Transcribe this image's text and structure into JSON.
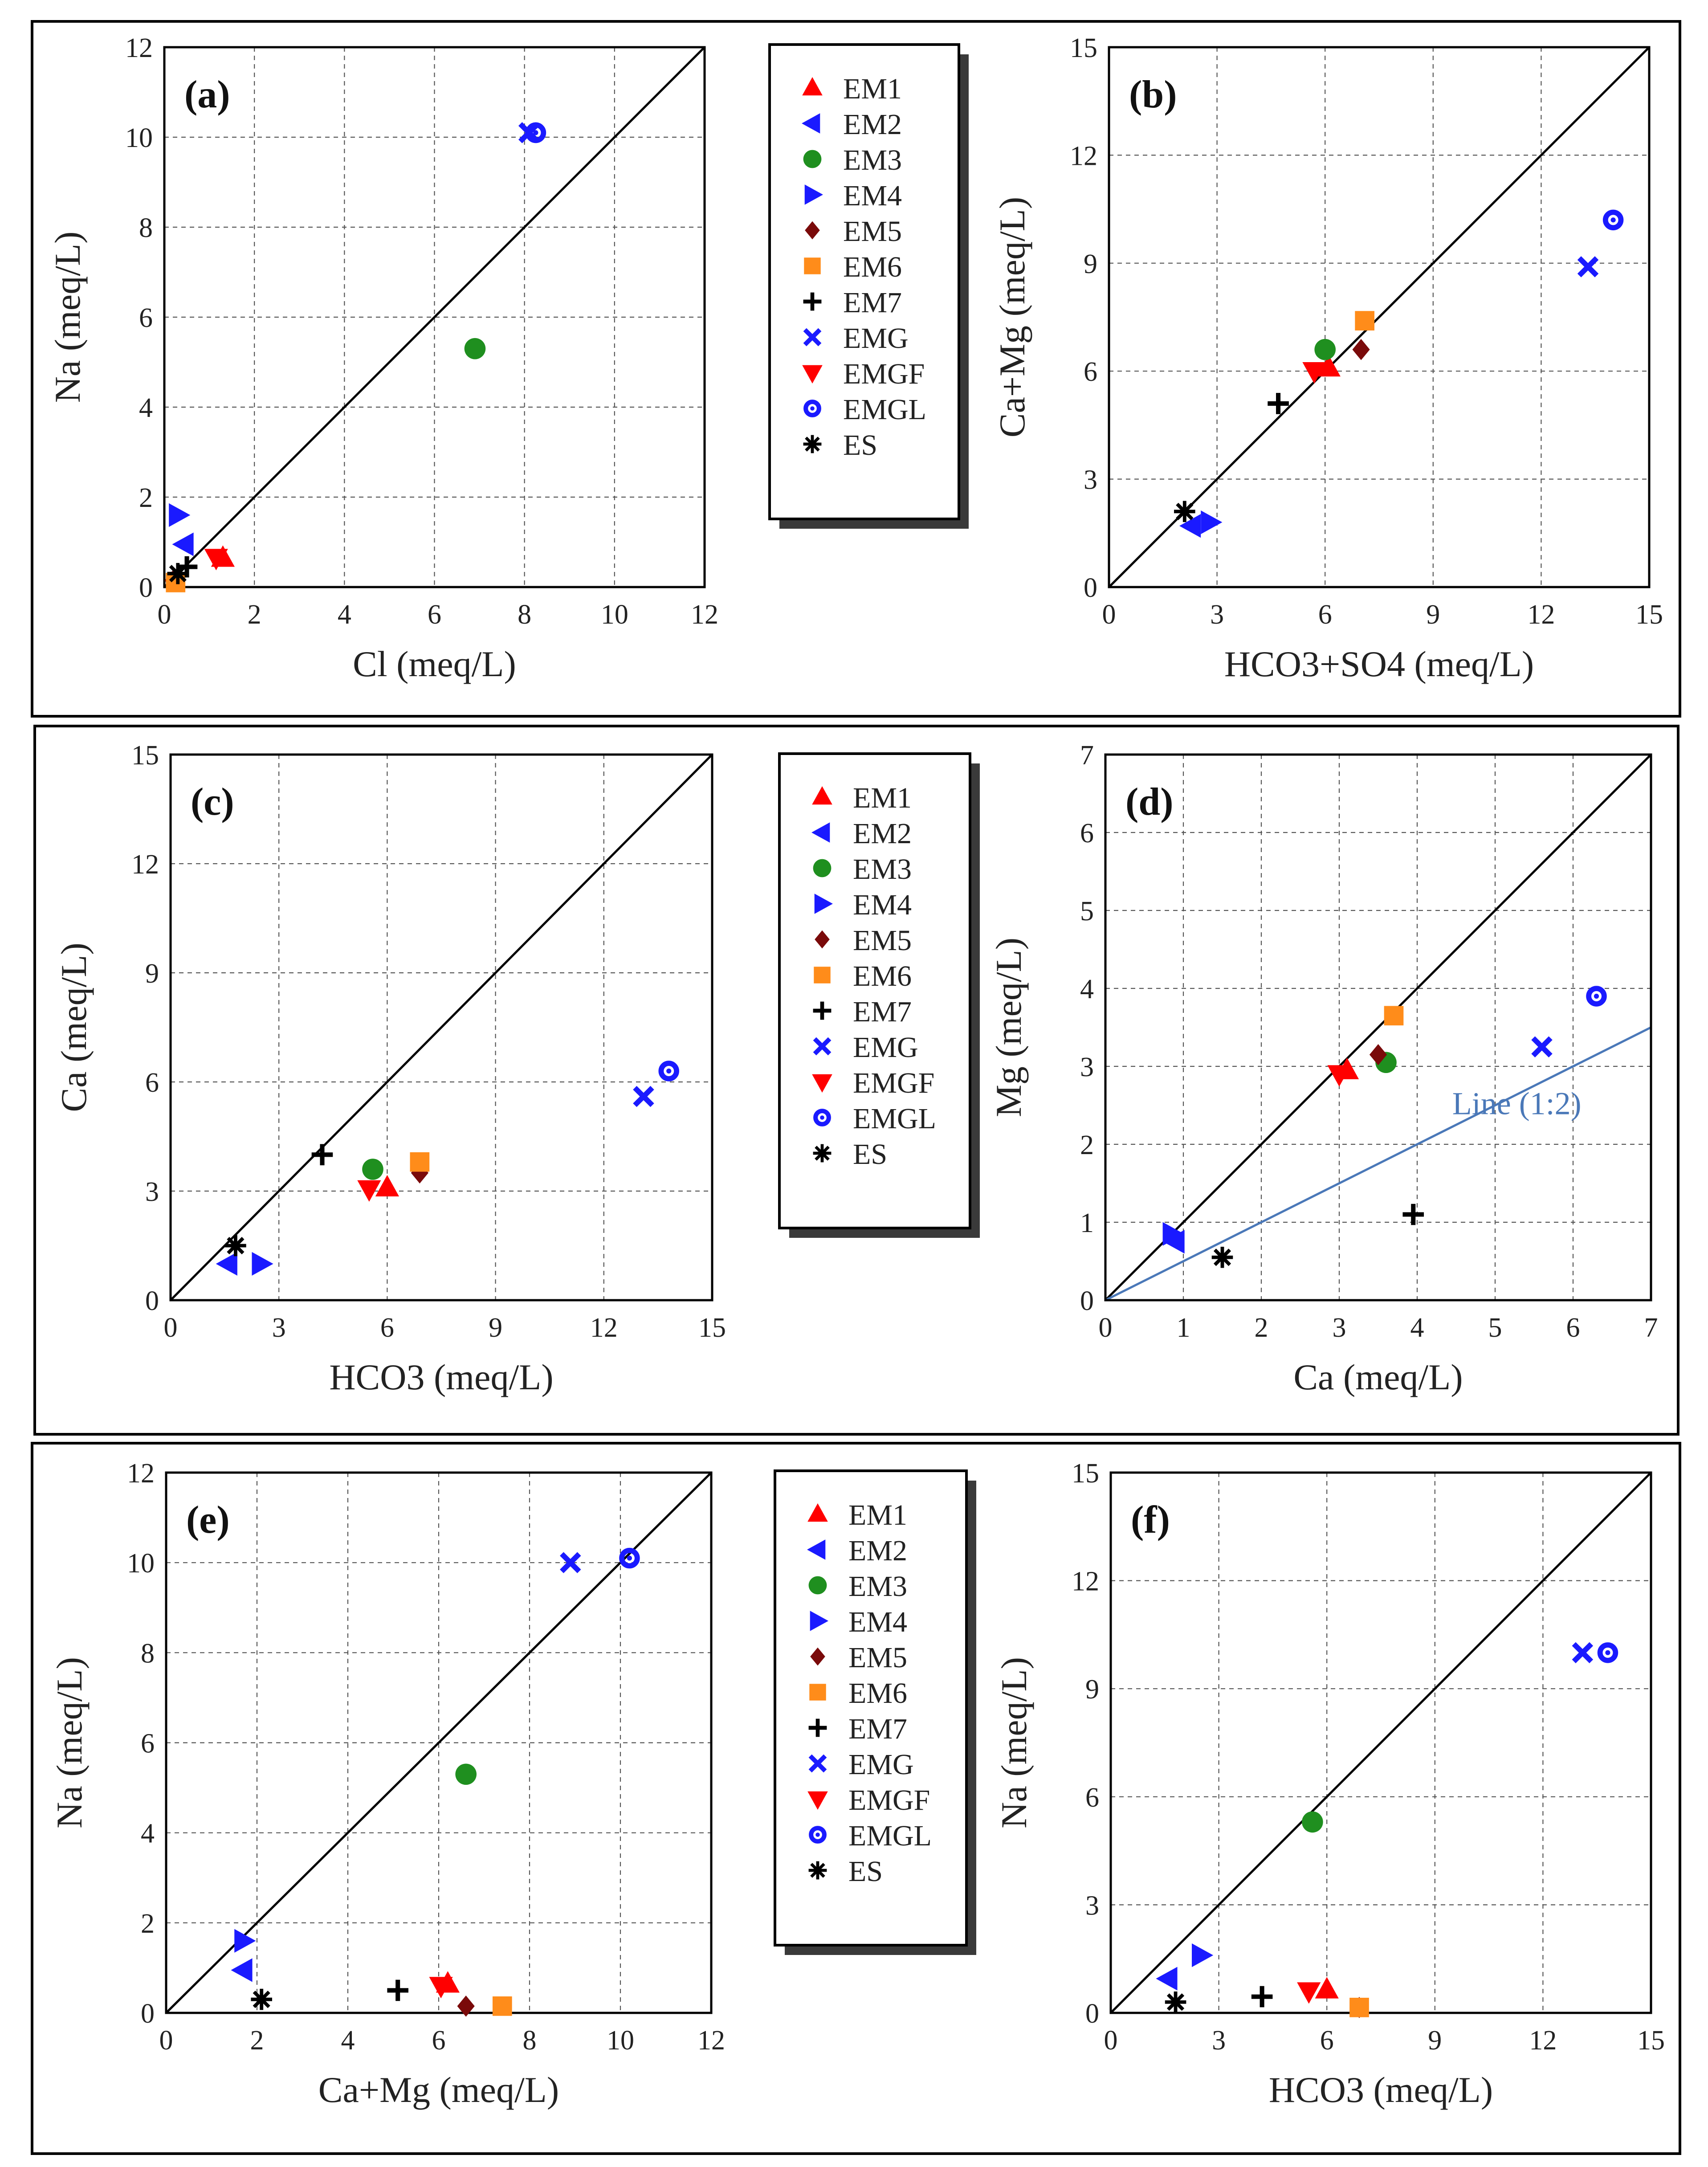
{
  "figure": {
    "legend_series": [
      "EM1",
      "EM2",
      "EM3",
      "EM4",
      "EM5",
      "EM6",
      "EM7",
      "EMG",
      "EMGF",
      "EMGL",
      "ES"
    ],
    "series_styles": {
      "EM1": {
        "marker": "triangle-up",
        "color": "#ff0000"
      },
      "EM2": {
        "marker": "triangle-left",
        "color": "#1a1aff"
      },
      "EM3": {
        "marker": "circle",
        "color": "#1f8f1f"
      },
      "EM4": {
        "marker": "triangle-right",
        "color": "#1a1aff"
      },
      "EM5": {
        "marker": "diamond",
        "color": "#7a0a0a"
      },
      "EM6": {
        "marker": "square",
        "color": "#ff8c1a"
      },
      "EM7": {
        "marker": "plus",
        "color": "#000000"
      },
      "EMG": {
        "marker": "cross",
        "color": "#1a1aff"
      },
      "EMGF": {
        "marker": "triangle-down",
        "color": "#ff0000"
      },
      "EMGL": {
        "marker": "bullseye",
        "color": "#1a1aff"
      },
      "ES": {
        "marker": "asterisk",
        "color": "#000000"
      }
    }
  },
  "chart_data": [
    {
      "type": "scatter",
      "tag": "(a)",
      "xlabel": "Cl (meq/L)",
      "ylabel": "Na (meq/L)",
      "xlim": [
        0,
        12
      ],
      "ylim": [
        0,
        12
      ],
      "xticks": [
        0,
        2,
        4,
        6,
        8,
        10,
        12
      ],
      "yticks": [
        0,
        2,
        4,
        6,
        8,
        10,
        12
      ],
      "grid": true,
      "reference_lines": [
        {
          "label": "1:1",
          "slope": 1,
          "color": "#000000"
        }
      ],
      "series": [
        {
          "name": "EM1",
          "x": [
            1.3
          ],
          "y": [
            0.65
          ]
        },
        {
          "name": "EM2",
          "x": [
            0.45
          ],
          "y": [
            0.95
          ]
        },
        {
          "name": "EM3",
          "x": [
            6.9
          ],
          "y": [
            5.3
          ]
        },
        {
          "name": "EM4",
          "x": [
            0.3
          ],
          "y": [
            1.6
          ]
        },
        {
          "name": "EM5",
          "x": [
            0.2
          ],
          "y": [
            0.15
          ]
        },
        {
          "name": "EM6",
          "x": [
            0.25
          ],
          "y": [
            0.1
          ]
        },
        {
          "name": "EM7",
          "x": [
            0.5
          ],
          "y": [
            0.45
          ]
        },
        {
          "name": "EMG",
          "x": [
            8.1
          ],
          "y": [
            10.1
          ]
        },
        {
          "name": "EMGF",
          "x": [
            1.15
          ],
          "y": [
            0.65
          ]
        },
        {
          "name": "EMGL",
          "x": [
            8.25
          ],
          "y": [
            10.1
          ]
        },
        {
          "name": "ES",
          "x": [
            0.3
          ],
          "y": [
            0.3
          ]
        }
      ]
    },
    {
      "type": "scatter",
      "tag": "(b)",
      "xlabel": "HCO3+SO4 (meq/L)",
      "ylabel": "Ca+Mg (meq/L)",
      "xlim": [
        0,
        15
      ],
      "ylim": [
        0,
        15
      ],
      "xticks": [
        0,
        3,
        6,
        9,
        12,
        15
      ],
      "yticks": [
        0,
        3,
        6,
        9,
        12,
        15
      ],
      "grid": true,
      "reference_lines": [
        {
          "label": "1:1",
          "slope": 1,
          "color": "#000000"
        }
      ],
      "series": [
        {
          "name": "EM1",
          "x": [
            6.1
          ],
          "y": [
            6.1
          ]
        },
        {
          "name": "EM2",
          "x": [
            2.3
          ],
          "y": [
            1.7
          ]
        },
        {
          "name": "EM3",
          "x": [
            6.0
          ],
          "y": [
            6.6
          ]
        },
        {
          "name": "EM4",
          "x": [
            2.8
          ],
          "y": [
            1.8
          ]
        },
        {
          "name": "EM5",
          "x": [
            7.0
          ],
          "y": [
            6.6
          ]
        },
        {
          "name": "EM6",
          "x": [
            7.1
          ],
          "y": [
            7.4
          ]
        },
        {
          "name": "EM7",
          "x": [
            4.7
          ],
          "y": [
            5.1
          ]
        },
        {
          "name": "EMG",
          "x": [
            13.3
          ],
          "y": [
            8.9
          ]
        },
        {
          "name": "EMGF",
          "x": [
            5.7
          ],
          "y": [
            6.0
          ]
        },
        {
          "name": "EMGL",
          "x": [
            14.0
          ],
          "y": [
            10.2
          ]
        },
        {
          "name": "ES",
          "x": [
            2.1
          ],
          "y": [
            2.1
          ]
        }
      ]
    },
    {
      "type": "scatter",
      "tag": "(c)",
      "xlabel": "HCO3 (meq/L)",
      "ylabel": "Ca (meq/L)",
      "xlim": [
        0,
        15
      ],
      "ylim": [
        0,
        15
      ],
      "xticks": [
        0,
        3,
        6,
        9,
        12,
        15
      ],
      "yticks": [
        0,
        3,
        6,
        9,
        12,
        15
      ],
      "grid": true,
      "reference_lines": [
        {
          "label": "1:1",
          "slope": 1,
          "color": "#000000"
        }
      ],
      "series": [
        {
          "name": "EM1",
          "x": [
            6.0
          ],
          "y": [
            3.1
          ]
        },
        {
          "name": "EM2",
          "x": [
            1.6
          ],
          "y": [
            1.0
          ]
        },
        {
          "name": "EM3",
          "x": [
            5.6
          ],
          "y": [
            3.6
          ]
        },
        {
          "name": "EM4",
          "x": [
            2.5
          ],
          "y": [
            1.0
          ]
        },
        {
          "name": "EM5",
          "x": [
            6.9
          ],
          "y": [
            3.5
          ]
        },
        {
          "name": "EM6",
          "x": [
            6.9
          ],
          "y": [
            3.8
          ]
        },
        {
          "name": "EM7",
          "x": [
            4.2
          ],
          "y": [
            4.0
          ]
        },
        {
          "name": "EMG",
          "x": [
            13.1
          ],
          "y": [
            5.6
          ]
        },
        {
          "name": "EMGF",
          "x": [
            5.5
          ],
          "y": [
            3.05
          ]
        },
        {
          "name": "EMGL",
          "x": [
            13.8
          ],
          "y": [
            6.3
          ]
        },
        {
          "name": "ES",
          "x": [
            1.8
          ],
          "y": [
            1.5
          ]
        }
      ]
    },
    {
      "type": "scatter",
      "tag": "(d)",
      "xlabel": "Ca (meq/L)",
      "ylabel": "Mg (meq/L)",
      "xlim": [
        0,
        7
      ],
      "ylim": [
        0,
        7
      ],
      "xticks": [
        0,
        1,
        2,
        3,
        4,
        5,
        6,
        7
      ],
      "yticks": [
        0,
        1,
        2,
        3,
        4,
        5,
        6,
        7
      ],
      "grid": true,
      "reference_lines": [
        {
          "label": "1:1",
          "slope": 1,
          "color": "#000000"
        },
        {
          "label": "Line (1:2)",
          "slope": 0.5,
          "color": "#4a78b8"
        }
      ],
      "series": [
        {
          "name": "EM1",
          "x": [
            3.1
          ],
          "y": [
            2.95
          ]
        },
        {
          "name": "EM2",
          "x": [
            0.9
          ],
          "y": [
            0.75
          ]
        },
        {
          "name": "EM3",
          "x": [
            3.6
          ],
          "y": [
            3.05
          ]
        },
        {
          "name": "EM4",
          "x": [
            0.85
          ],
          "y": [
            0.85
          ]
        },
        {
          "name": "EM5",
          "x": [
            3.5
          ],
          "y": [
            3.15
          ]
        },
        {
          "name": "EM6",
          "x": [
            3.7
          ],
          "y": [
            3.65
          ]
        },
        {
          "name": "EM7",
          "x": [
            3.95
          ],
          "y": [
            1.1
          ]
        },
        {
          "name": "EMG",
          "x": [
            5.6
          ],
          "y": [
            3.25
          ]
        },
        {
          "name": "EMGF",
          "x": [
            3.0
          ],
          "y": [
            2.9
          ]
        },
        {
          "name": "EMGL",
          "x": [
            6.3
          ],
          "y": [
            3.9
          ]
        },
        {
          "name": "ES",
          "x": [
            1.5
          ],
          "y": [
            0.55
          ]
        }
      ]
    },
    {
      "type": "scatter",
      "tag": "(e)",
      "xlabel": "Ca+Mg (meq/L)",
      "ylabel": "Na (meq/L)",
      "xlim": [
        0,
        12
      ],
      "ylim": [
        0,
        12
      ],
      "xticks": [
        0,
        2,
        4,
        6,
        8,
        10,
        12
      ],
      "yticks": [
        0,
        2,
        4,
        6,
        8,
        10,
        12
      ],
      "grid": true,
      "reference_lines": [
        {
          "label": "1:1",
          "slope": 1,
          "color": "#000000"
        }
      ],
      "series": [
        {
          "name": "EM1",
          "x": [
            6.2
          ],
          "y": [
            0.65
          ]
        },
        {
          "name": "EM2",
          "x": [
            1.7
          ],
          "y": [
            0.95
          ]
        },
        {
          "name": "EM3",
          "x": [
            6.6
          ],
          "y": [
            5.3
          ]
        },
        {
          "name": "EM4",
          "x": [
            1.7
          ],
          "y": [
            1.6
          ]
        },
        {
          "name": "EM5",
          "x": [
            6.6
          ],
          "y": [
            0.15
          ]
        },
        {
          "name": "EM6",
          "x": [
            7.4
          ],
          "y": [
            0.15
          ]
        },
        {
          "name": "EM7",
          "x": [
            5.1
          ],
          "y": [
            0.5
          ]
        },
        {
          "name": "EMG",
          "x": [
            8.9
          ],
          "y": [
            10.0
          ]
        },
        {
          "name": "EMGF",
          "x": [
            6.05
          ],
          "y": [
            0.6
          ]
        },
        {
          "name": "EMGL",
          "x": [
            10.2
          ],
          "y": [
            10.1
          ]
        },
        {
          "name": "ES",
          "x": [
            2.1
          ],
          "y": [
            0.3
          ]
        }
      ]
    },
    {
      "type": "scatter",
      "tag": "(f)",
      "xlabel": "HCO3 (meq/L)",
      "ylabel": "Na (meq/L)",
      "xlim": [
        0,
        15
      ],
      "ylim": [
        0,
        15
      ],
      "xticks": [
        0,
        3,
        6,
        9,
        12,
        15
      ],
      "yticks": [
        0,
        3,
        6,
        9,
        12,
        15
      ],
      "grid": true,
      "reference_lines": [
        {
          "label": "1:1",
          "slope": 1,
          "color": "#000000"
        }
      ],
      "series": [
        {
          "name": "EM1",
          "x": [
            6.0
          ],
          "y": [
            0.65
          ]
        },
        {
          "name": "EM2",
          "x": [
            1.6
          ],
          "y": [
            0.95
          ]
        },
        {
          "name": "EM3",
          "x": [
            5.6
          ],
          "y": [
            5.3
          ]
        },
        {
          "name": "EM4",
          "x": [
            2.5
          ],
          "y": [
            1.6
          ]
        },
        {
          "name": "EM5",
          "x": [
            6.9
          ],
          "y": [
            0.15
          ]
        },
        {
          "name": "EM6",
          "x": [
            6.9
          ],
          "y": [
            0.15
          ]
        },
        {
          "name": "EM7",
          "x": [
            4.2
          ],
          "y": [
            0.45
          ]
        },
        {
          "name": "EMG",
          "x": [
            13.1
          ],
          "y": [
            10.0
          ]
        },
        {
          "name": "EMGF",
          "x": [
            5.5
          ],
          "y": [
            0.6
          ]
        },
        {
          "name": "EMGL",
          "x": [
            13.8
          ],
          "y": [
            10.0
          ]
        },
        {
          "name": "ES",
          "x": [
            1.8
          ],
          "y": [
            0.3
          ]
        }
      ]
    }
  ]
}
